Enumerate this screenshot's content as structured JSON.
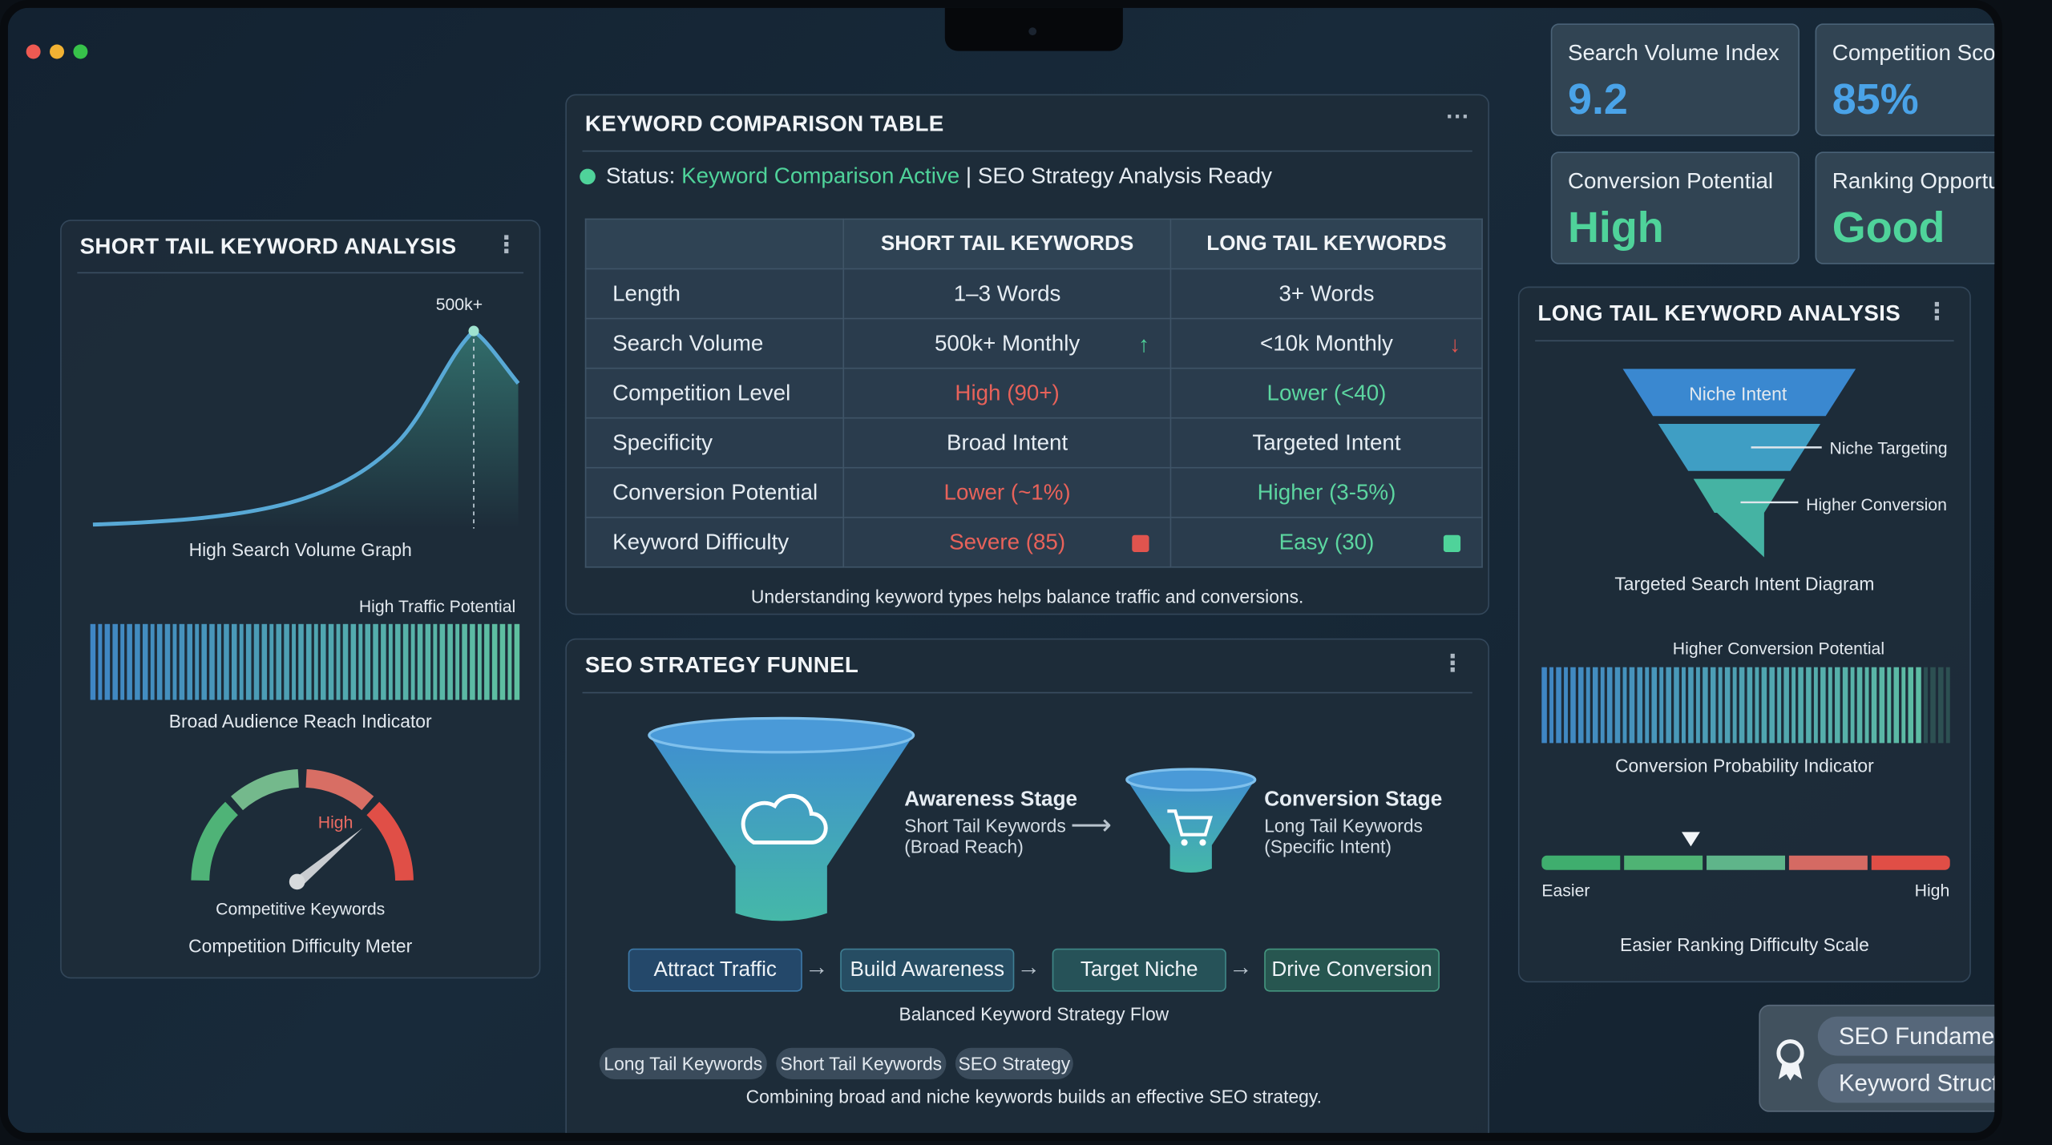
{
  "colors": {
    "accent_blue": "#4aa3e8",
    "accent_green": "#4fd39a",
    "red": "#e0544e",
    "teal": "#4bbfa0"
  },
  "stats": [
    {
      "label": "Search Volume Index",
      "value": "9.2"
    },
    {
      "label": "Competition Score",
      "value": "85%"
    },
    {
      "label": "Conversion Potential",
      "value": "High"
    },
    {
      "label": "Ranking Opportunity",
      "value": "Good"
    }
  ],
  "short_tail": {
    "title": "SHORT TAIL KEYWORD ANALYSIS",
    "peak_label": "500k+",
    "graph_caption": "High Search Volume Graph",
    "traffic_label": "High Traffic Potential",
    "reach_caption": "Broad Audience Reach Indicator",
    "gauge_label": "High",
    "gauge_sub": "Competitive Keywords",
    "gauge_caption": "Competition Difficulty Meter"
  },
  "table": {
    "title": "KEYWORD COMPARISON TABLE",
    "status_prefix": "Status:",
    "status_active": "Keyword Comparison Active",
    "status_rest": "| SEO Strategy Analysis Ready",
    "headers": [
      "",
      "SHORT TAIL KEYWORDS",
      "LONG TAIL KEYWORDS"
    ],
    "rows": [
      {
        "label": "Length",
        "short": "1–3 Words",
        "long": "3+ Words"
      },
      {
        "label": "Search Volume",
        "short": "500k+ Monthly",
        "long": "<10k Monthly"
      },
      {
        "label": "Competition Level",
        "short": "High (90+)",
        "long": "Lower (<40)"
      },
      {
        "label": "Specificity",
        "short": "Broad Intent",
        "long": "Targeted Intent"
      },
      {
        "label": "Conversion Potential",
        "short": "Lower (~1%)",
        "long": "Higher (3-5%)"
      },
      {
        "label": "Keyword Difficulty",
        "short": "Severe (85)",
        "long": "Easy (30)"
      }
    ],
    "footnote": "Understanding keyword types helps balance traffic and conversions."
  },
  "funnel": {
    "title": "SEO STRATEGY FUNNEL",
    "awareness_title": "Awareness Stage",
    "awareness_line1": "Short Tail Keywords",
    "awareness_line2": "(Broad Reach)",
    "conversion_title": "Conversion Stage",
    "conversion_line1": "Long Tail Keywords",
    "conversion_line2": "(Specific Intent)",
    "steps": [
      "Attract Traffic",
      "Build Awareness",
      "Target Niche",
      "Drive Conversion"
    ],
    "flow_caption": "Balanced Keyword Strategy Flow",
    "tags": [
      "Long Tail Keywords",
      "Short Tail Keywords",
      "SEO Strategy"
    ],
    "footnote": "Combining broad and niche keywords builds an effective SEO strategy."
  },
  "long_tail": {
    "title": "LONG TAIL KEYWORD ANALYSIS",
    "funnel_top": "Niche Intent",
    "funnel_mid": "Niche Targeting",
    "funnel_low": "Higher Conversion",
    "diagram_caption": "Targeted Search Intent Diagram",
    "potential_label": "Higher Conversion Potential",
    "probability_caption": "Conversion Probability Indicator",
    "scale_left": "Easier",
    "scale_right": "High",
    "scale_caption": "Easier Ranking Difficulty Scale"
  },
  "badge": {
    "item1": "SEO Fundamentals",
    "item2": "Keyword Structure"
  }
}
